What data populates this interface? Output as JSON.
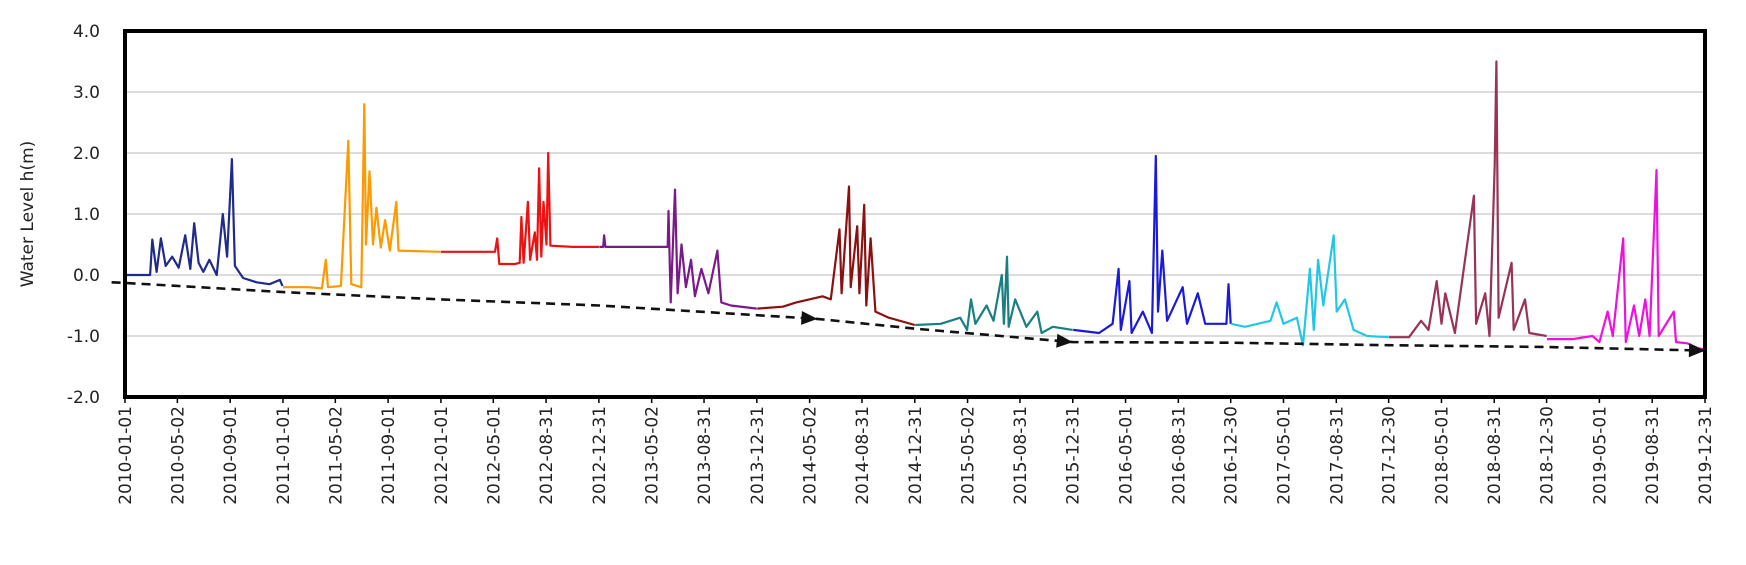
{
  "chart_data": {
    "type": "line",
    "title": "",
    "xlabel": "",
    "ylabel": "Water Level h(m)",
    "ylim": [
      -2.0,
      4.0
    ],
    "xlim": [
      "2010-01-01",
      "2019-12-31"
    ],
    "grid": true,
    "legend": "none",
    "y_ticks": [
      "4.0",
      "3.0",
      "2.0",
      "1.0",
      "0.0",
      "-1.0",
      "-2.0"
    ],
    "x_ticks": [
      "2010-01-01",
      "2010-05-02",
      "2010-09-01",
      "2011-01-01",
      "2011-05-02",
      "2011-09-01",
      "2012-01-01",
      "2012-05-01",
      "2012-08-31",
      "2012-12-31",
      "2013-05-02",
      "2013-08-31",
      "2013-12-31",
      "2014-05-02",
      "2014-08-31",
      "2014-12-31",
      "2015-05-02",
      "2015-08-31",
      "2015-12-31",
      "2016-05-01",
      "2016-08-31",
      "2016-12-30",
      "2017-05-01",
      "2017-08-31",
      "2017-12-30",
      "2018-05-01",
      "2018-08-31",
      "2018-12-30",
      "2019-05-01",
      "2019-08-31",
      "2019-12-31"
    ],
    "series": [
      {
        "color": "#1f2a8a",
        "points": [
          [
            "2010-01-01",
            0.0
          ],
          [
            "2010-02-28",
            0.0
          ],
          [
            "2010-03-05",
            0.58
          ],
          [
            "2010-03-15",
            0.05
          ],
          [
            "2010-03-25",
            0.6
          ],
          [
            "2010-04-05",
            0.15
          ],
          [
            "2010-04-20",
            0.3
          ],
          [
            "2010-05-05",
            0.12
          ],
          [
            "2010-05-20",
            0.65
          ],
          [
            "2010-06-01",
            0.1
          ],
          [
            "2010-06-10",
            0.85
          ],
          [
            "2010-06-20",
            0.2
          ],
          [
            "2010-07-01",
            0.05
          ],
          [
            "2010-07-15",
            0.25
          ],
          [
            "2010-08-01",
            0.0
          ],
          [
            "2010-08-15",
            1.0
          ],
          [
            "2010-08-25",
            0.3
          ],
          [
            "2010-09-05",
            1.9
          ],
          [
            "2010-09-12",
            0.15
          ],
          [
            "2010-10-01",
            -0.05
          ],
          [
            "2010-11-01",
            -0.12
          ],
          [
            "2010-12-01",
            -0.15
          ],
          [
            "2010-12-25",
            -0.08
          ],
          [
            "2010-12-31",
            -0.18
          ]
        ]
      },
      {
        "color": "#ff9900",
        "points": [
          [
            "2011-01-01",
            -0.2
          ],
          [
            "2011-03-01",
            -0.2
          ],
          [
            "2011-04-01",
            -0.22
          ],
          [
            "2011-04-10",
            0.25
          ],
          [
            "2011-04-15",
            -0.2
          ],
          [
            "2011-05-15",
            -0.18
          ],
          [
            "2011-06-01",
            2.2
          ],
          [
            "2011-06-08",
            -0.15
          ],
          [
            "2011-07-01",
            -0.2
          ],
          [
            "2011-07-08",
            2.8
          ],
          [
            "2011-07-12",
            0.5
          ],
          [
            "2011-07-20",
            1.7
          ],
          [
            "2011-07-28",
            0.5
          ],
          [
            "2011-08-05",
            1.1
          ],
          [
            "2011-08-15",
            0.45
          ],
          [
            "2011-08-25",
            0.9
          ],
          [
            "2011-09-05",
            0.4
          ],
          [
            "2011-09-20",
            1.2
          ],
          [
            "2011-09-25",
            0.4
          ],
          [
            "2011-12-31",
            0.38
          ]
        ]
      },
      {
        "color": "#ee1111",
        "points": [
          [
            "2012-01-01",
            0.38
          ],
          [
            "2012-04-15",
            0.38
          ],
          [
            "2012-05-05",
            0.38
          ],
          [
            "2012-05-10",
            0.6
          ],
          [
            "2012-05-15",
            0.18
          ],
          [
            "2012-06-20",
            0.18
          ],
          [
            "2012-07-01",
            0.2
          ],
          [
            "2012-07-05",
            0.95
          ],
          [
            "2012-07-10",
            0.2
          ],
          [
            "2012-07-20",
            1.2
          ],
          [
            "2012-07-25",
            0.25
          ],
          [
            "2012-08-05",
            0.7
          ],
          [
            "2012-08-10",
            0.25
          ],
          [
            "2012-08-15",
            1.75
          ],
          [
            "2012-08-20",
            0.3
          ],
          [
            "2012-08-25",
            1.2
          ],
          [
            "2012-09-01",
            0.5
          ],
          [
            "2012-09-05",
            2.0
          ],
          [
            "2012-09-10",
            0.48
          ],
          [
            "2012-11-01",
            0.46
          ],
          [
            "2012-12-31",
            0.46
          ]
        ]
      },
      {
        "color": "#7a1a8a",
        "points": [
          [
            "2013-01-01",
            0.46
          ],
          [
            "2013-01-10",
            0.46
          ],
          [
            "2013-01-12",
            0.65
          ],
          [
            "2013-01-15",
            0.46
          ],
          [
            "2013-06-08",
            0.46
          ],
          [
            "2013-06-10",
            1.05
          ],
          [
            "2013-06-15",
            -0.45
          ],
          [
            "2013-06-25",
            1.4
          ],
          [
            "2013-07-01",
            -0.3
          ],
          [
            "2013-07-10",
            0.5
          ],
          [
            "2013-07-20",
            -0.2
          ],
          [
            "2013-08-01",
            0.25
          ],
          [
            "2013-08-10",
            -0.35
          ],
          [
            "2013-08-25",
            0.1
          ],
          [
            "2013-09-10",
            -0.3
          ],
          [
            "2013-10-01",
            0.4
          ],
          [
            "2013-10-10",
            -0.45
          ],
          [
            "2013-11-01",
            -0.5
          ],
          [
            "2013-12-31",
            -0.55
          ]
        ]
      },
      {
        "color": "#8b1010",
        "points": [
          [
            "2014-01-01",
            -0.55
          ],
          [
            "2014-03-01",
            -0.52
          ],
          [
            "2014-04-01",
            -0.45
          ],
          [
            "2014-05-01",
            -0.4
          ],
          [
            "2014-06-01",
            -0.35
          ],
          [
            "2014-06-20",
            -0.4
          ],
          [
            "2014-07-10",
            0.75
          ],
          [
            "2014-07-15",
            -0.3
          ],
          [
            "2014-08-01",
            1.45
          ],
          [
            "2014-08-05",
            -0.2
          ],
          [
            "2014-08-20",
            0.8
          ],
          [
            "2014-08-25",
            -0.3
          ],
          [
            "2014-09-05",
            1.15
          ],
          [
            "2014-09-10",
            -0.5
          ],
          [
            "2014-09-20",
            0.6
          ],
          [
            "2014-10-01",
            -0.6
          ],
          [
            "2014-11-01",
            -0.7
          ],
          [
            "2014-12-31",
            -0.82
          ]
        ]
      },
      {
        "color": "#1a7f7f",
        "points": [
          [
            "2015-01-01",
            -0.82
          ],
          [
            "2015-03-01",
            -0.8
          ],
          [
            "2015-04-15",
            -0.7
          ],
          [
            "2015-05-01",
            -0.9
          ],
          [
            "2015-05-10",
            -0.4
          ],
          [
            "2015-05-20",
            -0.8
          ],
          [
            "2015-06-15",
            -0.5
          ],
          [
            "2015-07-01",
            -0.75
          ],
          [
            "2015-07-20",
            0.0
          ],
          [
            "2015-07-25",
            -0.8
          ],
          [
            "2015-08-01",
            0.3
          ],
          [
            "2015-08-05",
            -0.85
          ],
          [
            "2015-08-20",
            -0.4
          ],
          [
            "2015-09-15",
            -0.85
          ],
          [
            "2015-10-10",
            -0.6
          ],
          [
            "2015-10-20",
            -0.95
          ],
          [
            "2015-11-15",
            -0.85
          ],
          [
            "2015-12-31",
            -0.9
          ]
        ]
      },
      {
        "color": "#1a1ad8",
        "points": [
          [
            "2016-01-01",
            -0.9
          ],
          [
            "2016-03-01",
            -0.95
          ],
          [
            "2016-04-01",
            -0.8
          ],
          [
            "2016-04-15",
            0.1
          ],
          [
            "2016-04-20",
            -0.9
          ],
          [
            "2016-05-10",
            -0.1
          ],
          [
            "2016-05-15",
            -0.95
          ],
          [
            "2016-06-10",
            -0.6
          ],
          [
            "2016-07-01",
            -0.95
          ],
          [
            "2016-07-10",
            1.95
          ],
          [
            "2016-07-15",
            -0.6
          ],
          [
            "2016-07-25",
            0.4
          ],
          [
            "2016-08-05",
            -0.75
          ],
          [
            "2016-09-10",
            -0.2
          ],
          [
            "2016-09-20",
            -0.8
          ],
          [
            "2016-10-15",
            -0.3
          ],
          [
            "2016-11-01",
            -0.8
          ],
          [
            "2016-12-20",
            -0.8
          ],
          [
            "2016-12-25",
            -0.15
          ],
          [
            "2016-12-30",
            -0.8
          ]
        ]
      },
      {
        "color": "#22c7e8",
        "points": [
          [
            "2016-12-31",
            -0.8
          ],
          [
            "2017-02-01",
            -0.85
          ],
          [
            "2017-04-01",
            -0.75
          ],
          [
            "2017-04-15",
            -0.45
          ],
          [
            "2017-05-01",
            -0.8
          ],
          [
            "2017-06-01",
            -0.7
          ],
          [
            "2017-06-15",
            -1.15
          ],
          [
            "2017-07-01",
            0.1
          ],
          [
            "2017-07-10",
            -0.9
          ],
          [
            "2017-07-20",
            0.25
          ],
          [
            "2017-08-01",
            -0.5
          ],
          [
            "2017-08-25",
            0.65
          ],
          [
            "2017-09-01",
            -0.6
          ],
          [
            "2017-09-20",
            -0.4
          ],
          [
            "2017-10-10",
            -0.9
          ],
          [
            "2017-11-10",
            -1.0
          ],
          [
            "2017-12-30",
            -1.02
          ]
        ]
      },
      {
        "color": "#993355",
        "points": [
          [
            "2017-12-31",
            -1.02
          ],
          [
            "2018-02-15",
            -1.02
          ],
          [
            "2018-03-15",
            -0.75
          ],
          [
            "2018-04-01",
            -0.9
          ],
          [
            "2018-04-20",
            -0.1
          ],
          [
            "2018-05-01",
            -0.8
          ],
          [
            "2018-05-10",
            -0.3
          ],
          [
            "2018-06-01",
            -0.95
          ],
          [
            "2018-07-15",
            1.3
          ],
          [
            "2018-07-20",
            -0.8
          ],
          [
            "2018-08-10",
            -0.3
          ],
          [
            "2018-08-20",
            -1.0
          ],
          [
            "2018-09-01",
            1.8
          ],
          [
            "2018-09-05",
            3.5
          ],
          [
            "2018-09-10",
            -0.7
          ],
          [
            "2018-10-10",
            0.2
          ],
          [
            "2018-10-15",
            -0.9
          ],
          [
            "2018-11-10",
            -0.4
          ],
          [
            "2018-11-20",
            -0.95
          ],
          [
            "2018-12-30",
            -1.0
          ]
        ]
      },
      {
        "color": "#ee11dd",
        "points": [
          [
            "2018-12-31",
            -1.05
          ],
          [
            "2019-03-01",
            -1.05
          ],
          [
            "2019-04-15",
            -1.0
          ],
          [
            "2019-05-01",
            -1.1
          ],
          [
            "2019-05-20",
            -0.6
          ],
          [
            "2019-06-01",
            -1.0
          ],
          [
            "2019-06-25",
            0.6
          ],
          [
            "2019-07-01",
            -1.1
          ],
          [
            "2019-07-20",
            -0.5
          ],
          [
            "2019-08-01",
            -1.0
          ],
          [
            "2019-08-15",
            -0.4
          ],
          [
            "2019-08-25",
            -1.0
          ],
          [
            "2019-09-10",
            1.72
          ],
          [
            "2019-09-15",
            -1.0
          ],
          [
            "2019-10-20",
            -0.6
          ],
          [
            "2019-10-25",
            -1.1
          ],
          [
            "2019-11-20",
            -1.12
          ],
          [
            "2019-12-15",
            -1.2
          ],
          [
            "2019-12-31",
            -1.22
          ]
        ]
      }
    ],
    "trend_line": {
      "style": "dashed",
      "color": "#111111",
      "points": [
        [
          "2009-12-01",
          -0.12
        ],
        [
          "2010-01-01",
          -0.13
        ],
        [
          "2011-01-01",
          -0.28
        ],
        [
          "2012-01-01",
          -0.4
        ],
        [
          "2013-01-01",
          -0.5
        ],
        [
          "2014-05-20",
          -0.72
        ],
        [
          "2015-01-01",
          -0.88
        ],
        [
          "2015-12-31",
          -1.1
        ],
        [
          "2016-12-30",
          -1.11
        ],
        [
          "2017-12-30",
          -1.15
        ],
        [
          "2018-12-30",
          -1.18
        ],
        [
          "2019-12-31",
          -1.24
        ]
      ],
      "arrow_points": [
        [
          "2014-05-20",
          -0.72
        ],
        [
          "2015-12-31",
          -1.1
        ],
        [
          "2019-12-31",
          -1.24
        ]
      ]
    }
  }
}
